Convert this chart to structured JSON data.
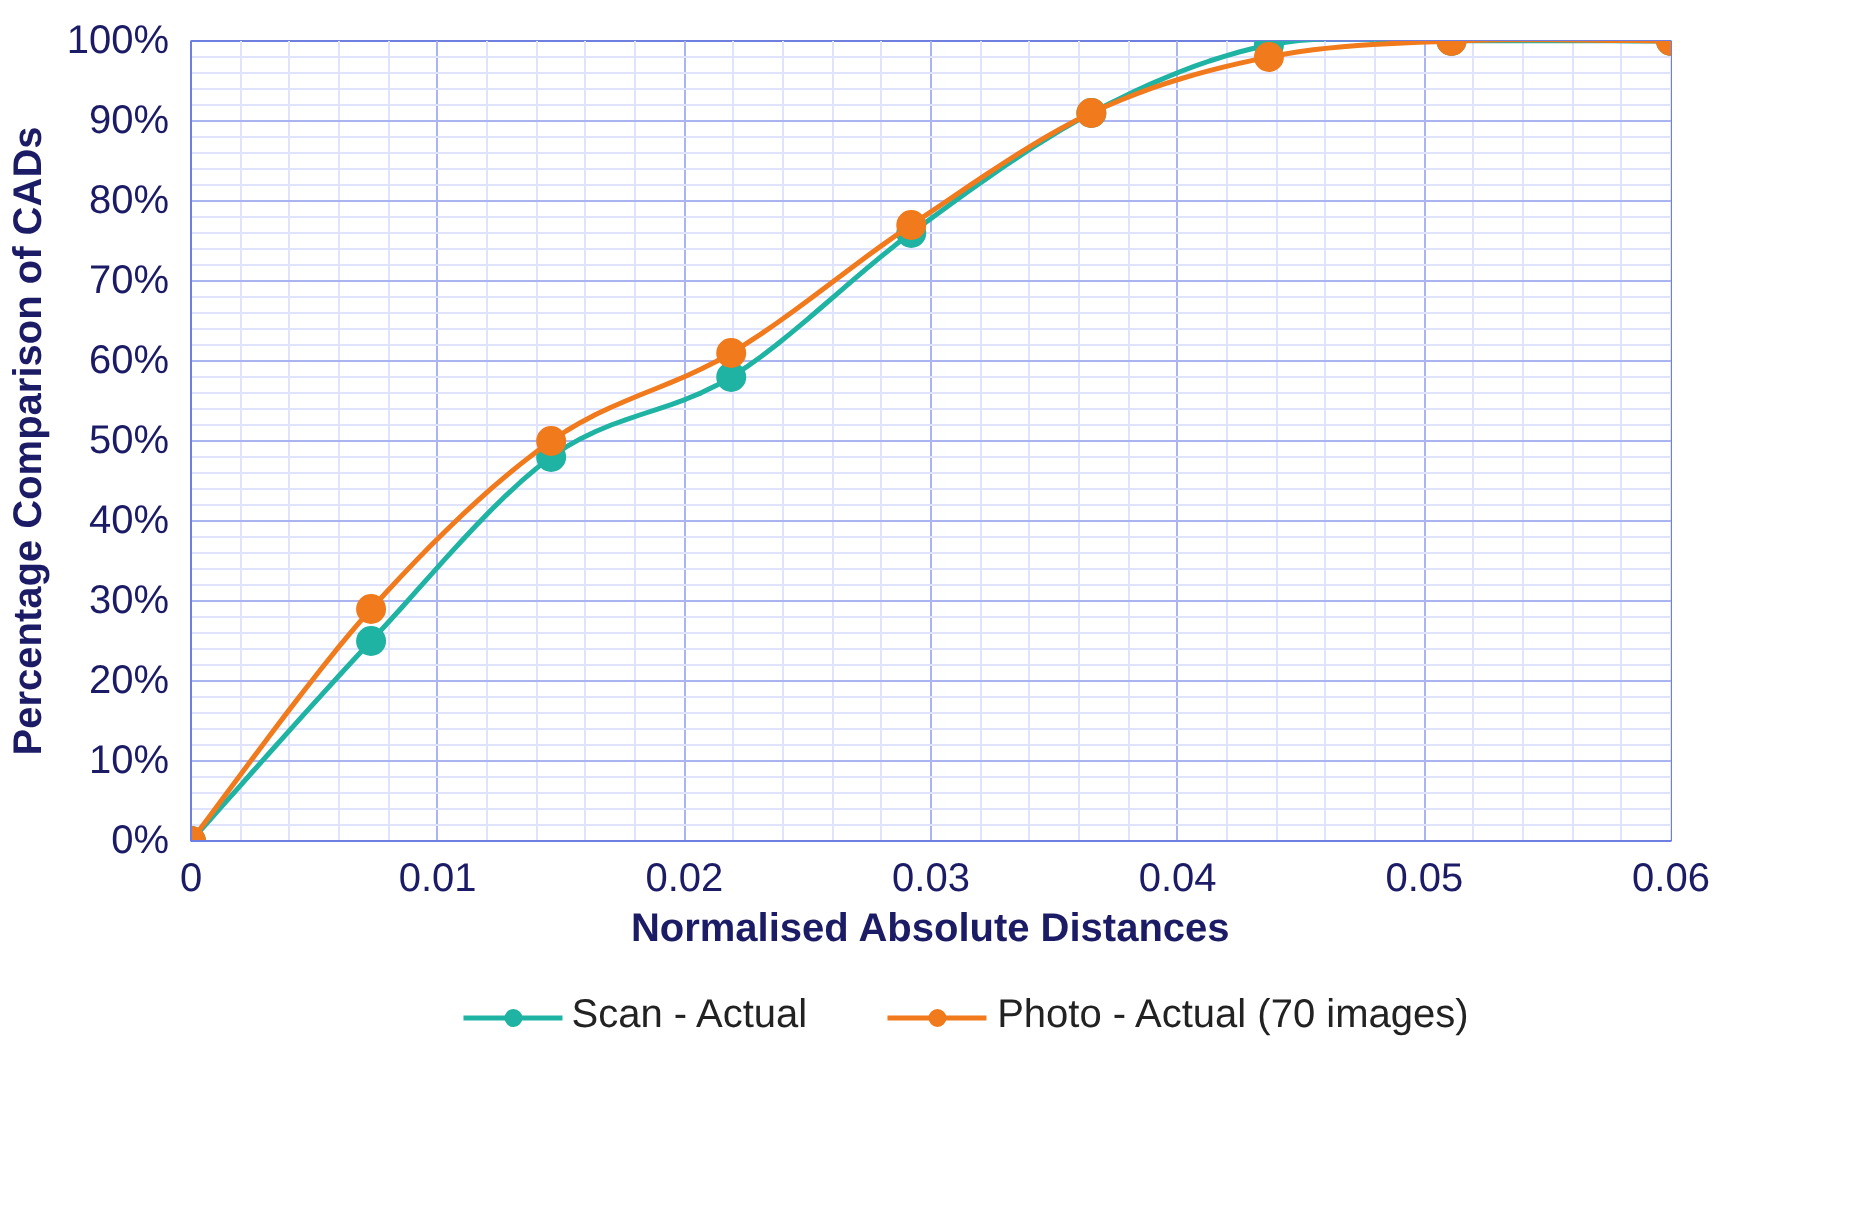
{
  "chart_data": {
    "type": "line",
    "xlabel": "Normalised Absolute Distances",
    "ylabel": "Percentage Comparison of CADs",
    "x": [
      0,
      0.0073,
      0.0146,
      0.0219,
      0.0292,
      0.0365,
      0.0437,
      0.0511,
      0.06
    ],
    "series": [
      {
        "name": "Scan - Actual",
        "color": "#1fb3a3",
        "values": [
          0,
          25,
          48,
          58,
          76,
          91,
          99.5,
          100,
          100
        ]
      },
      {
        "name": "Photo - Actual (70 images)",
        "color": "#f07a1c",
        "values": [
          0,
          29,
          50,
          61,
          77,
          91,
          98,
          100,
          100
        ]
      }
    ],
    "xlim": [
      0,
      0.06
    ],
    "xticks": [
      0,
      0.01,
      0.02,
      0.03,
      0.04,
      0.05,
      0.06
    ],
    "ylim": [
      0,
      100
    ],
    "yticks": [
      {
        "value": 0,
        "label": "0%"
      },
      {
        "value": 10,
        "label": "10%"
      },
      {
        "value": 20,
        "label": "20%"
      },
      {
        "value": 30,
        "label": "30%"
      },
      {
        "value": 40,
        "label": "40%"
      },
      {
        "value": 50,
        "label": "50%"
      },
      {
        "value": 60,
        "label": "60%"
      },
      {
        "value": 70,
        "label": "70%"
      },
      {
        "value": 80,
        "label": "80%"
      },
      {
        "value": 90,
        "label": "90%"
      },
      {
        "value": 100,
        "label": "100%"
      }
    ],
    "grid": true,
    "legend": "bottom",
    "marker": "circle",
    "line_style": "solid"
  }
}
